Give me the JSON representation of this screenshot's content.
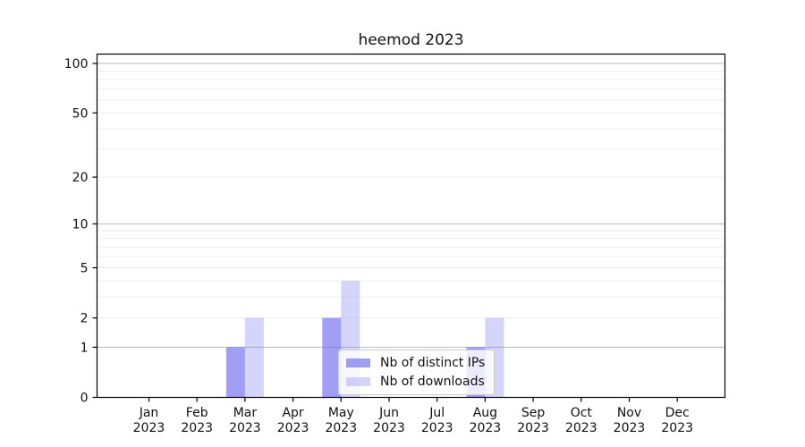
{
  "chart_data": {
    "type": "bar",
    "title": "heemod 2023",
    "categories": [
      "Jan",
      "Feb",
      "Mar",
      "Apr",
      "May",
      "Jun",
      "Jul",
      "Aug",
      "Sep",
      "Oct",
      "Nov",
      "Dec"
    ],
    "x_year_label": "2023",
    "series": [
      {
        "name": "Nb of distinct IPs",
        "color": "rgba(100,100,240,0.62)",
        "values": [
          0,
          0,
          1,
          0,
          2,
          0,
          0,
          1,
          0,
          0,
          0,
          0
        ]
      },
      {
        "name": "Nb of downloads",
        "color": "rgba(100,100,240,0.27)",
        "values": [
          0,
          0,
          2,
          0,
          4,
          0,
          0,
          2,
          0,
          0,
          0,
          0
        ]
      }
    ],
    "y_scale": "log1p",
    "y_ticks": [
      0,
      1,
      2,
      5,
      10,
      20,
      50,
      100
    ],
    "ylim": [
      0,
      114
    ],
    "grid": {
      "minor_values": [
        2,
        3,
        4,
        5,
        6,
        7,
        8,
        9,
        20,
        30,
        40,
        50,
        60,
        70,
        80,
        90
      ],
      "major_values": [
        1,
        10,
        100
      ],
      "minor_color": "#ededed",
      "major_color": "#bbbbbb"
    },
    "legend": {
      "position": "lower center"
    },
    "colors": {
      "spine": "#000000",
      "tick": "#000000",
      "text": "#111111",
      "background": "#ffffff"
    }
  }
}
